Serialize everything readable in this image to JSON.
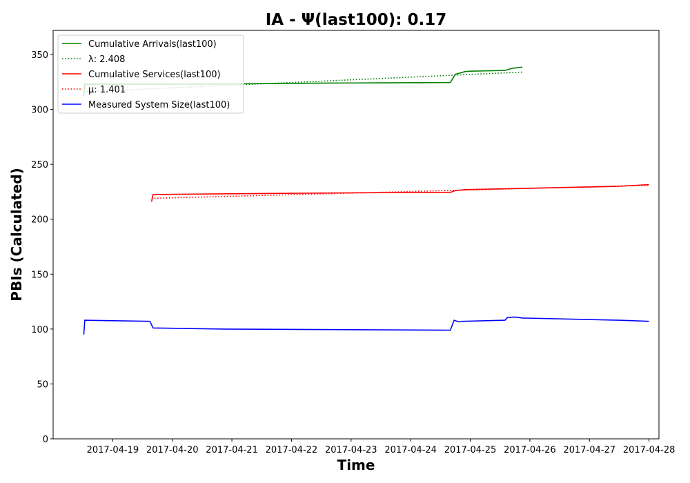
{
  "chart_data": {
    "type": "line",
    "title": "IA -  Ψ(last100): 0.17",
    "xlabel": "Time",
    "ylabel": "PBIs (Calculated)",
    "x_type": "date",
    "xlim": [
      "2017-04-18T00:00",
      "2017-04-28T04:00"
    ],
    "ylim": [
      0,
      372
    ],
    "xticks": [
      "2017-04-19",
      "2017-04-20",
      "2017-04-21",
      "2017-04-22",
      "2017-04-23",
      "2017-04-24",
      "2017-04-25",
      "2017-04-26",
      "2017-04-27",
      "2017-04-28"
    ],
    "yticks": [
      0,
      50,
      100,
      150,
      200,
      250,
      300,
      350
    ],
    "grid": false,
    "legend_position": "top-left",
    "series": [
      {
        "name": "Cumulative Arrivals(last100)",
        "color": "#008000",
        "style": "solid",
        "points": [
          [
            "2017-04-18T12:20",
            312
          ],
          [
            "2017-04-18T12:45",
            323
          ],
          [
            "2017-04-20T12:00",
            323
          ],
          [
            "2017-04-21T12:00",
            323.5
          ],
          [
            "2017-04-22T12:00",
            324
          ],
          [
            "2017-04-23T12:00",
            324.2
          ],
          [
            "2017-04-24T16:00",
            324.5
          ],
          [
            "2017-04-24T18:00",
            332
          ],
          [
            "2017-04-24T22:00",
            334.5
          ],
          [
            "2017-04-25T00:00",
            334.8
          ],
          [
            "2017-04-25T14:00",
            335.5
          ],
          [
            "2017-04-25T17:00",
            337.5
          ],
          [
            "2017-04-25T21:00",
            338.5
          ]
        ]
      },
      {
        "name": "λ: 2.408",
        "color": "#008000",
        "style": "dotted",
        "points": [
          [
            "2017-04-18T12:20",
            316
          ],
          [
            "2017-04-25T21:00",
            334
          ]
        ]
      },
      {
        "name": "Cumulative Services(last100)",
        "color": "#ff0000",
        "style": "solid",
        "points": [
          [
            "2017-04-19T15:40",
            216
          ],
          [
            "2017-04-19T16:15",
            222.5
          ],
          [
            "2017-04-21T00:00",
            223.2
          ],
          [
            "2017-04-23T00:00",
            224
          ],
          [
            "2017-04-24T16:00",
            224.5
          ],
          [
            "2017-04-24T18:00",
            226
          ],
          [
            "2017-04-24T22:00",
            227
          ],
          [
            "2017-04-26T00:00",
            228.2
          ],
          [
            "2017-04-27T12:00",
            230
          ],
          [
            "2017-04-28T00:00",
            231.5
          ]
        ]
      },
      {
        "name": "μ: 1.401",
        "color": "#ff0000",
        "style": "dotted",
        "points": [
          [
            "2017-04-19T15:40",
            219
          ],
          [
            "2017-04-28T00:00",
            231
          ]
        ]
      },
      {
        "name": "Measured System Size(last100)",
        "color": "#0000ff",
        "style": "solid",
        "points": [
          [
            "2017-04-18T12:20",
            95
          ],
          [
            "2017-04-18T12:45",
            108
          ],
          [
            "2017-04-19T15:00",
            107
          ],
          [
            "2017-04-19T16:15",
            101
          ],
          [
            "2017-04-20T21:00",
            100
          ],
          [
            "2017-04-24T16:00",
            99
          ],
          [
            "2017-04-24T17:30",
            108
          ],
          [
            "2017-04-24T19:30",
            106.5
          ],
          [
            "2017-04-24T21:00",
            107
          ],
          [
            "2017-04-25T14:00",
            108
          ],
          [
            "2017-04-25T15:00",
            110.5
          ],
          [
            "2017-04-25T18:00",
            111
          ],
          [
            "2017-04-25T21:00",
            110
          ],
          [
            "2017-04-27T12:00",
            108
          ],
          [
            "2017-04-28T00:00",
            107
          ]
        ]
      }
    ]
  }
}
